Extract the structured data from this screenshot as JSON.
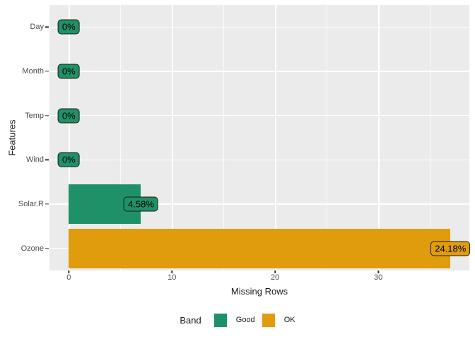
{
  "chart_data": {
    "type": "bar",
    "orientation": "horizontal",
    "title": "",
    "xlabel": "Missing Rows",
    "ylabel": "Features",
    "categories": [
      "Day",
      "Month",
      "Temp",
      "Wind",
      "Solar.R",
      "Ozone"
    ],
    "values": [
      0,
      0,
      0,
      0,
      7,
      37
    ],
    "pct_labels": [
      "0%",
      "0%",
      "0%",
      "0%",
      "4.58%",
      "24.18%"
    ],
    "bands": [
      "Good",
      "Good",
      "Good",
      "Good",
      "Good",
      "OK"
    ],
    "band_colors": {
      "Good": "#1F9168",
      "OK": "#E09C0D"
    },
    "x_ticks": [
      0,
      10,
      20,
      30
    ],
    "x_minor_ticks": [
      5,
      15,
      25,
      35
    ],
    "xlim": [
      -1.87,
      38.83
    ],
    "grid": true,
    "panel_background": "#EBEBEB",
    "gridline_color": "#FFFFFF",
    "legend": {
      "title": "Band",
      "position": "bottom",
      "entries": [
        {
          "label": "Good",
          "color": "#1F9168"
        },
        {
          "label": "OK",
          "color": "#E09C0D"
        }
      ]
    }
  }
}
